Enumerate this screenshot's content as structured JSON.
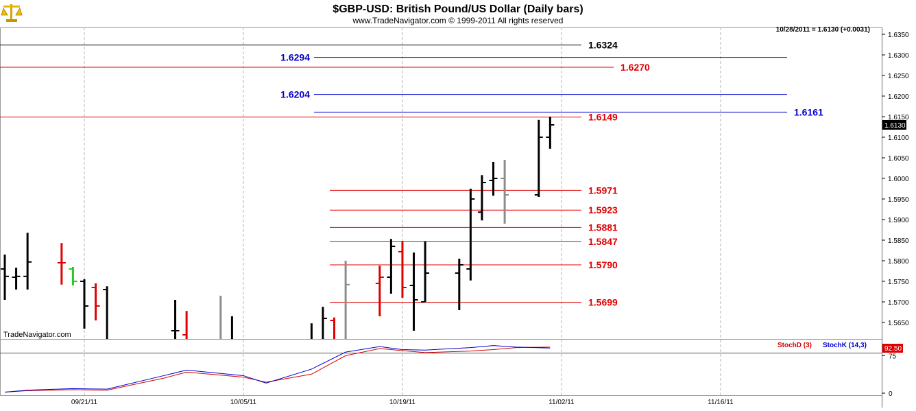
{
  "header": {
    "title": "$GBP-USD:  British Pound/US Dollar  (Daily bars)",
    "copyright": "www.TradeNavigator.com © 1999-2011 All rights reserved",
    "last_quote": "10/28/2011 = 1.6130 (+0.0031)",
    "watermark": "TradeNavigator.com",
    "logo_icon": "scales-logo-icon"
  },
  "colors": {
    "black_level": "#000000",
    "blue_level": "#0000cc",
    "red_level": "#e00000",
    "up_bar": "#000000",
    "down_bar": "#e00000",
    "neutral_bar": "#8c8c8c",
    "green_bar": "#22cc22",
    "stoch_d": "#d40000",
    "stoch_k": "#0000cc",
    "grid": "#b4b4b4"
  },
  "chart_data": [
    {
      "type": "ohlc",
      "title": "$GBP-USD:  British Pound/US Dollar  (Daily bars)",
      "ylim": [
        1.561,
        1.637
      ],
      "y_ticks": [
        "1.6350",
        "1.6300",
        "1.6250",
        "1.6200",
        "1.6150",
        "1.6100",
        "1.6050",
        "1.6000",
        "1.5950",
        "1.5900",
        "1.5850",
        "1.5800",
        "1.5750",
        "1.5700",
        "1.5650"
      ],
      "x_ticks": [
        "09/21/11",
        "10/05/11",
        "10/19/11",
        "11/02/11",
        "11/16/11"
      ],
      "last_price_label": "1.6130",
      "grid": true,
      "bars": [
        {
          "date": "09/14/11",
          "open": 1.578,
          "high": 1.5815,
          "low": 1.5705,
          "close": 1.5762,
          "color": "black"
        },
        {
          "date": "09/15/11",
          "open": 1.576,
          "high": 1.5783,
          "low": 1.573,
          "close": 1.5762,
          "color": "black"
        },
        {
          "date": "09/16/11",
          "open": 1.5762,
          "high": 1.5868,
          "low": 1.573,
          "close": 1.5797,
          "color": "black"
        },
        {
          "date": "09/19/11",
          "open": 1.5795,
          "high": 1.5843,
          "low": 1.5742,
          "close": 1.5795,
          "color": "red"
        },
        {
          "date": "09/20/11",
          "open": 1.578,
          "high": 1.5785,
          "low": 1.574,
          "close": 1.575,
          "color": "green"
        },
        {
          "date": "09/21/11",
          "open": 1.575,
          "high": 1.5755,
          "low": 1.5635,
          "close": 1.569,
          "color": "black"
        },
        {
          "date": "09/22/11",
          "open": 1.5735,
          "high": 1.5745,
          "low": 1.5655,
          "close": 1.569,
          "color": "red"
        },
        {
          "date": "09/23/11",
          "open": 1.573,
          "high": 1.5738,
          "low": 1.561,
          "close": 1.561,
          "color": "black"
        },
        {
          "date": "09/29/11",
          "open": 1.563,
          "high": 1.5705,
          "low": 1.561,
          "close": 1.563,
          "color": "black"
        },
        {
          "date": "09/30/11",
          "open": 1.562,
          "high": 1.5678,
          "low": 1.561,
          "close": 1.561,
          "color": "red"
        },
        {
          "date": "10/03/11",
          "open": 1.561,
          "high": 1.5715,
          "low": 1.561,
          "close": 1.561,
          "color": "gray"
        },
        {
          "date": "10/04/11",
          "open": 1.561,
          "high": 1.5665,
          "low": 1.561,
          "close": 1.561,
          "color": "black"
        },
        {
          "date": "10/11/11",
          "open": 1.561,
          "high": 1.5648,
          "low": 1.561,
          "close": 1.561,
          "color": "black"
        },
        {
          "date": "10/12/11",
          "open": 1.561,
          "high": 1.5688,
          "low": 1.561,
          "close": 1.566,
          "color": "black"
        },
        {
          "date": "10/13/11",
          "open": 1.5655,
          "high": 1.5662,
          "low": 1.561,
          "close": 1.561,
          "color": "red"
        },
        {
          "date": "10/14/11",
          "open": 1.561,
          "high": 1.58,
          "low": 1.561,
          "close": 1.5742,
          "color": "gray"
        },
        {
          "date": "10/17/11",
          "open": 1.5745,
          "high": 1.5788,
          "low": 1.5665,
          "close": 1.576,
          "color": "red"
        },
        {
          "date": "10/18/11",
          "open": 1.576,
          "high": 1.5853,
          "low": 1.572,
          "close": 1.5835,
          "color": "black"
        },
        {
          "date": "10/19/11",
          "open": 1.5822,
          "high": 1.5848,
          "low": 1.571,
          "close": 1.5735,
          "color": "red"
        },
        {
          "date": "10/20/11",
          "open": 1.574,
          "high": 1.582,
          "low": 1.563,
          "close": 1.5705,
          "color": "black"
        },
        {
          "date": "10/21/11",
          "open": 1.57,
          "high": 1.5847,
          "low": 1.57,
          "close": 1.577,
          "color": "black"
        },
        {
          "date": "10/24/11",
          "open": 1.577,
          "high": 1.5805,
          "low": 1.568,
          "close": 1.579,
          "color": "black"
        },
        {
          "date": "10/25/11",
          "open": 1.578,
          "high": 1.5975,
          "low": 1.5752,
          "close": 1.595,
          "color": "black"
        },
        {
          "date": "10/26/11",
          "open": 1.5918,
          "high": 1.6008,
          "low": 1.5898,
          "close": 1.599,
          "color": "black"
        },
        {
          "date": "10/27/11",
          "open": 1.5995,
          "high": 1.604,
          "low": 1.5958,
          "close": 1.6,
          "color": "black"
        },
        {
          "date": "10/28/11",
          "open": 1.6,
          "high": 1.6045,
          "low": 1.589,
          "close": 1.596,
          "color": "gray"
        },
        {
          "date": "10/31/11",
          "open": 1.596,
          "high": 1.6142,
          "low": 1.5955,
          "close": 1.61,
          "color": "black"
        },
        {
          "date": "11/01/11",
          "open": 1.61,
          "high": 1.615,
          "low": 1.6072,
          "close": 1.613,
          "color": "black"
        }
      ],
      "levels": [
        {
          "value": 1.6324,
          "label": "1.6324",
          "color": "black",
          "extent": "full"
        },
        {
          "value": 1.6294,
          "label": "1.6294",
          "color": "blue",
          "extent": "right"
        },
        {
          "value": 1.627,
          "label": "1.6270",
          "color": "red",
          "extent": "full"
        },
        {
          "value": 1.6204,
          "label": "1.6204",
          "color": "blue",
          "extent": "right"
        },
        {
          "value": 1.6161,
          "label": "1.6161",
          "color": "blue",
          "extent": "right"
        },
        {
          "value": 1.6149,
          "label": "1.6149",
          "color": "red",
          "extent": "full"
        },
        {
          "value": 1.5971,
          "label": "1.5971",
          "color": "red",
          "extent": "short"
        },
        {
          "value": 1.5923,
          "label": "1.5923",
          "color": "red",
          "extent": "short"
        },
        {
          "value": 1.5881,
          "label": "1.5881",
          "color": "red",
          "extent": "short"
        },
        {
          "value": 1.5847,
          "label": "1.5847",
          "color": "red",
          "extent": "short"
        },
        {
          "value": 1.579,
          "label": "1.5790",
          "color": "red",
          "extent": "short"
        },
        {
          "value": 1.5699,
          "label": "1.5699",
          "color": "red",
          "extent": "short"
        }
      ]
    },
    {
      "type": "line",
      "ylim": [
        0,
        100
      ],
      "y_ticks": [
        "75",
        "0"
      ],
      "reference_level": 80,
      "last_value_label": "92.50",
      "x": [
        "09/14",
        "09/16",
        "09/20",
        "09/23",
        "09/28",
        "09/30",
        "10/05",
        "10/07",
        "10/11",
        "10/14",
        "10/17",
        "10/19",
        "10/21",
        "10/25",
        "10/27",
        "10/29",
        "11/01"
      ],
      "series": [
        {
          "name": "StochD (3)",
          "values": [
            2,
            5,
            7,
            6,
            30,
            42,
            32,
            22,
            38,
            75,
            89,
            85,
            81,
            84,
            87,
            91,
            92
          ]
        },
        {
          "name": "StochK (14,3)",
          "values": [
            2,
            6,
            9,
            8,
            35,
            46,
            35,
            20,
            48,
            82,
            93,
            87,
            86,
            91,
            95,
            92,
            90
          ]
        }
      ]
    }
  ]
}
